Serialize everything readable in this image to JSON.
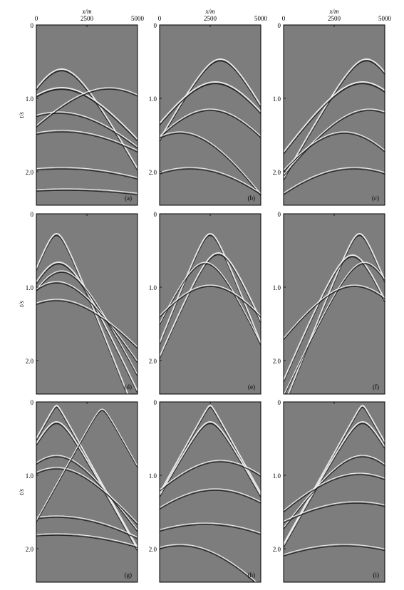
{
  "x_axis": {
    "label": "x/m",
    "ticks": [
      "0",
      "2500",
      "5000"
    ]
  },
  "y_axis": {
    "label": "t/s",
    "ticks": [
      "0",
      "1.0",
      "2.0"
    ]
  },
  "panels": [
    {
      "label": "(a)"
    },
    {
      "label": "(b)"
    },
    {
      "label": "(c)"
    },
    {
      "label": "(d)"
    },
    {
      "label": "(e)"
    },
    {
      "label": "(f)"
    },
    {
      "label": "(g)"
    },
    {
      "label": "(h)"
    },
    {
      "label": "(i)"
    }
  ]
}
